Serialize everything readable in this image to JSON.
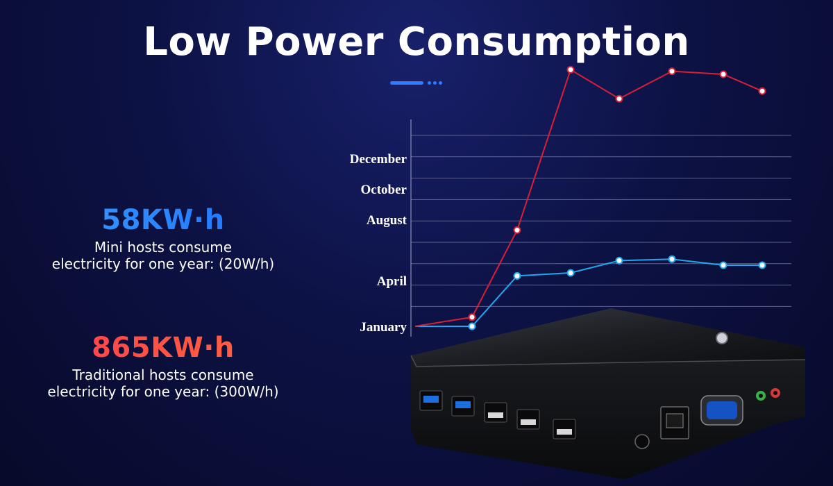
{
  "header": {
    "title": "Low Power Consumption"
  },
  "stats": [
    {
      "value": "58KW·h",
      "line1": "Mini hosts consume",
      "line2": "electricity for one year: (20W/h)"
    },
    {
      "value": "865KW·h",
      "line1": "Traditional hosts consume",
      "line2": "electricity for one year: (300W/h)"
    }
  ],
  "colors": {
    "accent": "#2f7bff",
    "mini": "#1fa8ee",
    "traditional": "#d91f35"
  },
  "chart_data": {
    "type": "line",
    "title": "",
    "xlabel": "",
    "ylabel": "",
    "y_tick_labels": [
      "January",
      "April",
      "August",
      "October",
      "December"
    ],
    "grid": true,
    "series": [
      {
        "values": [
          1.0,
          1.0,
          4.3,
          4.5,
          5.3,
          5.4,
          5.0,
          5.0
        ]
      },
      {
        "values": [
          1.0,
          1.6,
          7.3,
          17.8,
          15.9,
          17.7,
          17.5,
          16.4
        ]
      }
    ]
  },
  "product": {
    "device": "mini-pc-image"
  }
}
